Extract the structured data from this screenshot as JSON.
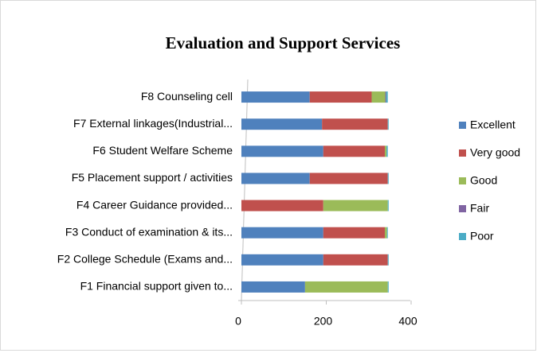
{
  "chart_data": {
    "type": "stacked-bar-horizontal",
    "title": "Evaluation and Support Services",
    "categories": [
      "F1 Financial support given to...",
      "F2 College Schedule (Exams and...",
      "F3 Conduct of examination & its...",
      "F4 Career Guidance provided...",
      "F5 Placement support / activities",
      "F6 Student Welfare Scheme",
      "F7 External linkages(Industrial...",
      "F8 Counseling cell"
    ],
    "series": [
      {
        "name": "Excellent",
        "color": "#4f81bd",
        "values": [
          150,
          193,
          193,
          0,
          161,
          193,
          190,
          161
        ]
      },
      {
        "name": "Very good",
        "color": "#c0504d",
        "values": [
          0,
          152,
          145,
          193,
          184,
          145,
          155,
          146
        ]
      },
      {
        "name": "Good",
        "color": "#9bbb59",
        "values": [
          195,
          0,
          5,
          152,
          0,
          4,
          0,
          32
        ]
      },
      {
        "name": "Fair",
        "color": "#8064a2",
        "values": [
          0,
          0,
          0,
          0,
          0,
          0,
          0,
          2
        ]
      },
      {
        "name": "Poor",
        "color": "#4bacc6",
        "values": [
          2,
          2,
          2,
          2,
          2,
          3,
          2,
          4
        ]
      }
    ],
    "xlim": [
      0,
      400
    ],
    "xticks": [
      0,
      200,
      400
    ],
    "legend": "right"
  }
}
